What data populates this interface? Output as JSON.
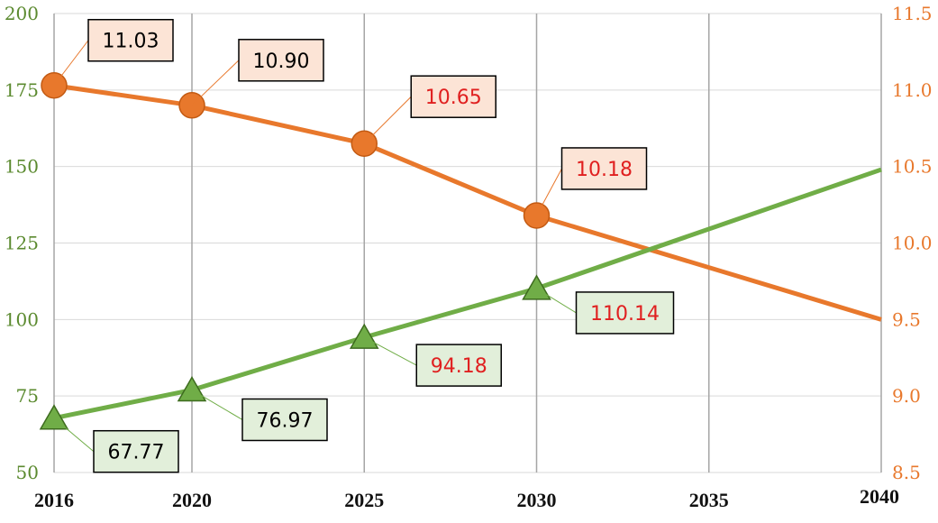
{
  "chart_data": {
    "type": "line",
    "title": "",
    "x": [
      2016,
      2020,
      2025,
      2030,
      2035,
      2040
    ],
    "xlim": [
      2016,
      2040
    ],
    "grid": "vertical",
    "y_left": {
      "ylim": [
        50,
        200
      ],
      "ticks": [
        50,
        75,
        100,
        125,
        150,
        175,
        200
      ],
      "color": "#5b8a2f"
    },
    "y_right": {
      "ylim": [
        8.5,
        11.5
      ],
      "ticks": [
        "8.5",
        "9.0",
        "9.5",
        "10.0",
        "10.5",
        "11.0",
        "11.5"
      ],
      "color": "#e8782c"
    },
    "series": [
      {
        "axis": "right",
        "color": "#e8782c",
        "marker": "circle",
        "x": [
          2016,
          2020,
          2025,
          2030,
          2040
        ],
        "values": [
          11.03,
          10.9,
          10.65,
          10.18,
          9.5
        ],
        "labels": [
          "11.03",
          "10.90",
          "10.65",
          "10.18",
          null
        ],
        "label_colors": [
          "#000000",
          "#000000",
          "#e02020",
          "#e02020",
          null
        ],
        "label_fill": "#fce4d6"
      },
      {
        "axis": "left",
        "color": "#70ad47",
        "marker": "triangle",
        "x": [
          2016,
          2020,
          2025,
          2030,
          2040
        ],
        "values": [
          67.77,
          76.97,
          94.18,
          110.14,
          149
        ],
        "labels": [
          "67.77",
          "76.97",
          "94.18",
          "110.14",
          null
        ],
        "label_colors": [
          "#000000",
          "#000000",
          "#e02020",
          "#e02020",
          null
        ],
        "label_fill": "#e2efda"
      }
    ]
  }
}
